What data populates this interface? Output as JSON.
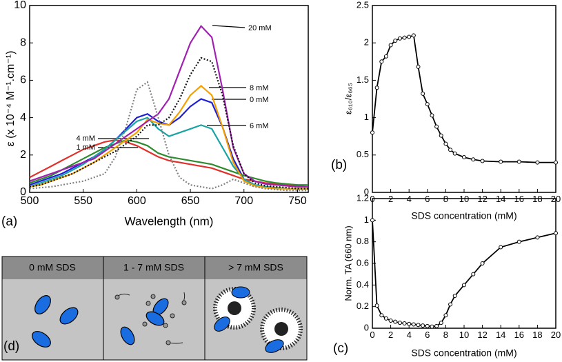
{
  "chart_data": [
    {
      "type": "line",
      "panel_label": "(a)",
      "xlabel": "Wavelength (nm)",
      "ylabel": "ε (x 10⁻⁴ M⁻¹.cm⁻¹)",
      "xlim": [
        500,
        760
      ],
      "ylim": [
        0,
        10
      ],
      "xticks": [
        500,
        550,
        600,
        650,
        700,
        750
      ],
      "yticks": [
        0,
        2,
        4,
        6,
        8,
        10
      ],
      "x": [
        500,
        510,
        520,
        530,
        540,
        550,
        560,
        570,
        580,
        590,
        600,
        610,
        620,
        630,
        640,
        650,
        660,
        670,
        680,
        690,
        700,
        710,
        720,
        730,
        740,
        750,
        760
      ],
      "series": [
        {
          "name": "0 mM",
          "color": "#1f1fd6",
          "dash": false,
          "values": [
            0.4,
            0.6,
            0.8,
            1.0,
            1.3,
            1.6,
            1.9,
            2.3,
            2.8,
            3.4,
            4.0,
            4.2,
            3.8,
            3.6,
            4.0,
            4.6,
            5.0,
            4.8,
            3.5,
            1.8,
            0.7,
            0.4,
            0.3,
            0.25,
            0.2,
            0.2,
            0.2
          ]
        },
        {
          "name": "1 mM",
          "color": "#e0302a",
          "dash": false,
          "values": [
            0.8,
            1.1,
            1.4,
            1.7,
            2.0,
            2.3,
            2.5,
            2.7,
            2.8,
            2.7,
            2.5,
            2.2,
            1.9,
            1.7,
            1.6,
            1.5,
            1.4,
            1.3,
            1.1,
            0.9,
            0.7,
            0.6,
            0.5,
            0.45,
            0.4,
            0.35,
            0.3
          ]
        },
        {
          "name": "4 mM",
          "color": "#2e8b2e",
          "dash": false,
          "values": [
            0.5,
            0.7,
            0.9,
            1.2,
            1.5,
            1.8,
            2.1,
            2.4,
            2.6,
            2.8,
            2.7,
            2.5,
            2.1,
            1.9,
            1.8,
            1.7,
            1.6,
            1.5,
            1.3,
            1.1,
            0.9,
            0.75,
            0.6,
            0.5,
            0.45,
            0.4,
            0.4
          ]
        },
        {
          "name": "6 mM",
          "color": "#1aa3a3",
          "dash": false,
          "values": [
            0.3,
            0.5,
            0.7,
            0.9,
            1.2,
            1.5,
            1.9,
            2.3,
            2.8,
            3.3,
            3.8,
            4.0,
            3.4,
            3.0,
            3.2,
            3.4,
            3.6,
            3.4,
            2.4,
            1.4,
            0.7,
            0.4,
            0.3,
            0.25,
            0.2,
            0.2,
            0.2
          ]
        },
        {
          "name": "8 mM",
          "color": "#f5a000",
          "dash": false,
          "values": [
            0.3,
            0.4,
            0.6,
            0.8,
            1.0,
            1.3,
            1.6,
            2.0,
            2.4,
            2.8,
            3.2,
            3.9,
            3.7,
            3.6,
            4.3,
            5.2,
            5.7,
            5.2,
            3.5,
            1.6,
            0.6,
            0.35,
            0.25,
            0.2,
            0.2,
            0.2,
            0.2
          ]
        },
        {
          "name": "20 mM",
          "color": "#a020b0",
          "dash": false,
          "values": [
            0.6,
            0.8,
            1.0,
            1.2,
            1.4,
            1.6,
            1.8,
            2.2,
            2.6,
            3.0,
            3.4,
            3.8,
            4.2,
            5.0,
            6.5,
            8.0,
            8.9,
            8.3,
            5.5,
            2.4,
            1.0,
            0.6,
            0.45,
            0.4,
            0.35,
            0.3,
            0.3
          ]
        },
        {
          "name": null,
          "color": "#111111",
          "dash": true,
          "values": [
            0.3,
            0.4,
            0.6,
            0.8,
            1.0,
            1.3,
            1.6,
            1.9,
            2.2,
            2.6,
            3.0,
            3.6,
            3.6,
            4.0,
            5.0,
            6.3,
            7.2,
            7.0,
            5.2,
            2.5,
            1.0,
            0.5,
            0.35,
            0.3,
            0.25,
            0.2,
            0.2
          ]
        },
        {
          "name": null,
          "color": "#808080",
          "dash": true,
          "values": [
            0.2,
            0.25,
            0.3,
            0.4,
            0.5,
            0.6,
            0.8,
            1.0,
            1.9,
            3.5,
            5.5,
            5.9,
            4.0,
            2.0,
            0.8,
            0.4,
            0.3,
            0.2,
            0.4,
            0.7,
            0.5,
            0.3,
            0.2,
            0.15,
            0.1,
            0.1,
            0.1
          ]
        }
      ]
    },
    {
      "type": "scatter-line",
      "panel_label": "(b)",
      "xlabel": "SDS concentration (mM)",
      "ylabel": "ε₆₁₀/ε₆₆₅",
      "xlim": [
        0,
        20
      ],
      "ylim": [
        0,
        2.5
      ],
      "xticks": [
        0,
        2,
        4,
        6,
        8,
        10,
        12,
        14,
        16,
        18,
        20
      ],
      "yticks": [
        0,
        0.5,
        1,
        1.5,
        2,
        2.5
      ],
      "x": [
        0,
        0.5,
        1,
        1.5,
        2,
        2.5,
        3,
        3.5,
        4,
        4.5,
        5,
        5.5,
        6,
        6.5,
        7,
        7.5,
        8,
        8.5,
        9,
        10,
        11,
        12,
        14,
        16,
        18,
        20
      ],
      "series": [
        {
          "name": null,
          "color": "#000000",
          "values": [
            0.8,
            1.4,
            1.75,
            1.82,
            1.97,
            2.03,
            2.06,
            2.07,
            2.08,
            2.1,
            1.68,
            1.32,
            1.18,
            1.03,
            0.88,
            0.76,
            0.65,
            0.57,
            0.52,
            0.47,
            0.44,
            0.42,
            0.41,
            0.41,
            0.4,
            0.4
          ]
        }
      ]
    },
    {
      "type": "scatter-line",
      "panel_label": "(c)",
      "xlabel": "SDS concentration (mM)",
      "ylabel": "Norm. TA (660 nm)",
      "xlim": [
        0,
        20
      ],
      "ylim": [
        0,
        1.2
      ],
      "xticks": [
        0,
        2,
        4,
        6,
        8,
        10,
        12,
        14,
        16,
        18,
        20
      ],
      "yticks": [
        0,
        0.2,
        0.4,
        0.6,
        0.8,
        1,
        1.2
      ],
      "x": [
        0,
        0.5,
        1,
        1.5,
        2,
        2.5,
        3,
        3.5,
        4,
        4.5,
        5,
        5.5,
        6,
        6.5,
        7,
        7.5,
        8,
        8.5,
        9,
        10,
        11,
        12,
        14,
        16,
        18,
        20
      ],
      "series": [
        {
          "name": null,
          "color": "#000000",
          "values": [
            1.0,
            0.21,
            0.12,
            0.09,
            0.07,
            0.06,
            0.05,
            0.045,
            0.04,
            0.035,
            0.03,
            0.025,
            0.02,
            0.015,
            0.02,
            0.05,
            0.12,
            0.22,
            0.3,
            0.4,
            0.5,
            0.6,
            0.75,
            0.8,
            0.84,
            0.88
          ]
        }
      ]
    }
  ],
  "diagram": {
    "panel_label": "(d)",
    "columns": [
      "0 mM SDS",
      "1 - 7 mM SDS",
      "> 7 mM SDS"
    ]
  }
}
